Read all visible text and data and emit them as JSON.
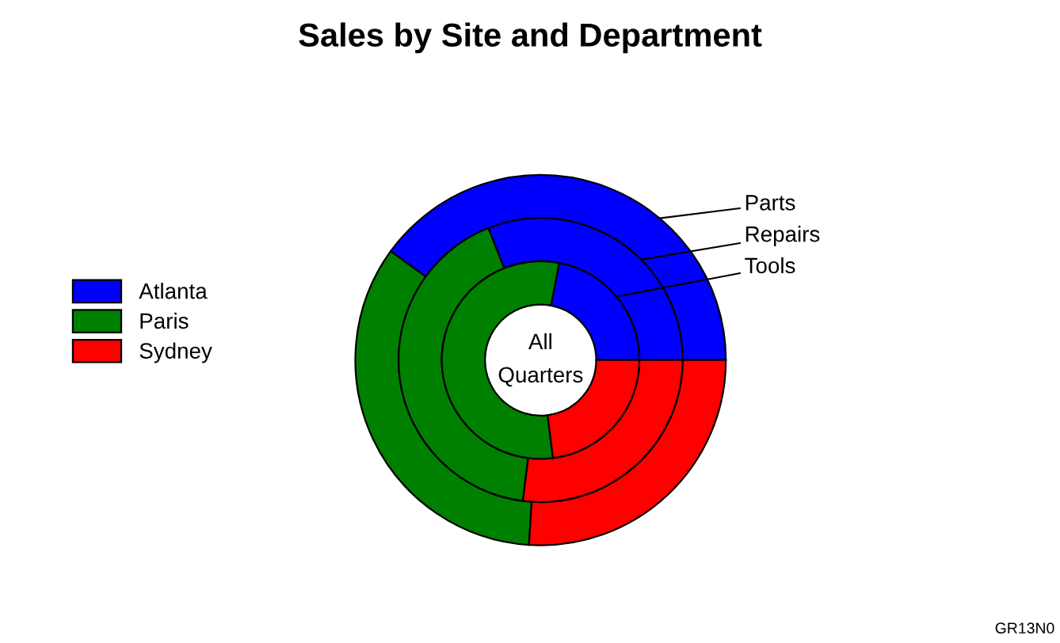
{
  "chart_data": {
    "type": "donut",
    "title": "Sales by Site and Department",
    "categories": [
      "Atlanta",
      "Paris",
      "Sydney"
    ],
    "colors": [
      "#0000ff",
      "#008000",
      "#ff0000"
    ],
    "series": [
      {
        "name": "Parts",
        "values": [
          40,
          34,
          26
        ]
      },
      {
        "name": "Repairs",
        "values": [
          31,
          42,
          27
        ]
      },
      {
        "name": "Tools",
        "values": [
          22,
          55,
          23
        ]
      }
    ],
    "legend": "left",
    "annotations": [
      "All\nQuarters",
      "GR13N0"
    ]
  }
}
